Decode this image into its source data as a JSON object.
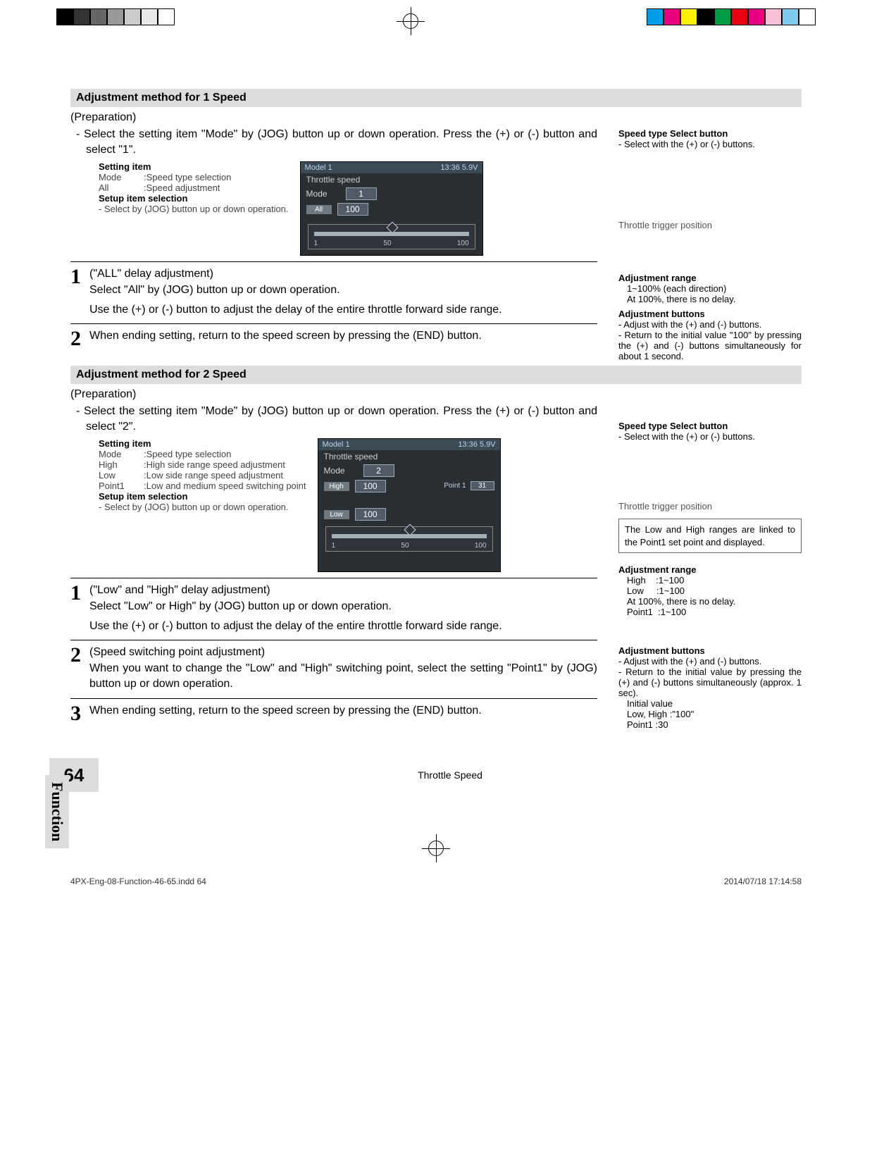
{
  "print_bar": {
    "gray_boxes": [
      "#000000",
      "#333333",
      "#666666",
      "#999999",
      "#cccccc",
      "#e8e8e8",
      "#ffffff"
    ],
    "color_boxes": [
      "#00a0e9",
      "#e6007e",
      "#fff100",
      "#000000",
      "#009944",
      "#e60012",
      "#e4007f",
      "#f6c1d9",
      "#7fccf0",
      "#ffffff"
    ]
  },
  "section1": {
    "bar": "Adjustment method for 1 Speed",
    "prep": "(Preparation)",
    "body": "- Select the setting item \"Mode\" by (JOG) button up or down operation. Press the (+) or (-) button and select \"1\".",
    "setting_title": "Setting item",
    "rows": [
      {
        "k": "Mode",
        "v": ":Speed type selection"
      },
      {
        "k": "All",
        "v": ":Speed adjustment"
      }
    ],
    "setup_title": "Setup item selection",
    "setup_body": "- Select by (JOG) button up or down operation.",
    "lcd": {
      "model": "Model 1",
      "clock": "13:36 5.9V",
      "screen_title": "Throttle speed",
      "mode_label": "Mode",
      "mode_val": "1",
      "all_label": "All",
      "all_val": "100",
      "ticks": [
        "1",
        "50",
        "100"
      ]
    },
    "side": {
      "sel_title": "Speed type Select button",
      "sel_body": "- Select with the (+) or (-) buttons.",
      "trig": "Throttle trigger position",
      "range_title": "Adjustment  range",
      "range_body1": "1~100% (each direction)",
      "range_body2": "At 100%, there is no delay.",
      "btn_title": "Adjustment buttons",
      "btn_body1": "- Adjust with the (+) and (-) buttons.",
      "btn_body2": "- Return to the initial value \"100\" by pressing the (+) and (-) buttons simultaneously for about 1 second."
    },
    "steps": [
      {
        "n": "1",
        "title": "(\"ALL\" delay adjustment)",
        "p1": "Select \"All\" by (JOG) button up or down operation.",
        "p2": "Use the (+) or (-) button to adjust the delay of the entire throttle forward side range."
      },
      {
        "n": "2",
        "p1": "When ending setting, return to the speed screen by pressing the (END) button."
      }
    ]
  },
  "section2": {
    "bar": "Adjustment method for 2 Speed",
    "prep": "(Preparation)",
    "body": "- Select the setting item \"Mode\" by (JOG) button up or down operation. Press the (+) or (-) button and select \"2\".",
    "setting_title": "Setting item",
    "rows": [
      {
        "k": "Mode",
        "v": ":Speed type selection"
      },
      {
        "k": "High",
        "v": ":High side range speed adjustment"
      },
      {
        "k": "Low",
        "v": ":Low side range speed adjustment"
      },
      {
        "k": "Point1",
        "v": ":Low and medium speed switching point"
      }
    ],
    "setup_title": "Setup item selection",
    "setup_body": "- Select by (JOG) button up or down operation.",
    "lcd": {
      "model": "Model 1",
      "clock": "13:36 5.9V",
      "screen_title": "Throttle speed",
      "mode_label": "Mode",
      "mode_val": "2",
      "high_label": "High",
      "high_val": "100",
      "low_label": "Low",
      "low_val": "100",
      "pt_label": "Point 1",
      "pt_val": "31",
      "ticks": [
        "1",
        "50",
        "100"
      ]
    },
    "side": {
      "sel_title": "Speed type Select button",
      "sel_body": "- Select with the (+) or (-) buttons.",
      "trig": "Throttle trigger position",
      "boxnote": "The Low and High ranges are linked to the Point1 set point and displayed.",
      "range_title": "Adjustment  range",
      "range_r1": "High    :1~100",
      "range_r2": "Low     :1~100",
      "range_r3": "At 100%, there is no delay.",
      "range_r4": "Point1  :1~100",
      "btn_title": "Adjustment buttons",
      "btn_body1": "- Adjust with the (+) and (-) buttons.",
      "btn_body2": "- Return to the initial value by pressing the (+) and (-) buttons simultaneously (approx. 1 sec).",
      "btn_body3": "Initial value",
      "btn_body4": "Low, High :\"100\"",
      "btn_body5": "Point1 :30"
    },
    "steps": [
      {
        "n": "1",
        "title": "(\"Low\" and \"High\" delay adjustment)",
        "p1": "Select \"Low\" or High\" by (JOG) button up or down operation.",
        "p2": "Use the (+) or (-) button to adjust the delay of the entire throttle forward side range."
      },
      {
        "n": "2",
        "title": "(Speed switching point adjustment)",
        "p1": "When you want to change the \"Low\" and \"High\" switching point, select the setting \"Point1\" by (JOG) button up or down operation."
      },
      {
        "n": "3",
        "p1": "When ending setting, return to the speed screen by pressing the (END) button."
      }
    ]
  },
  "footer": {
    "page_num": "64",
    "title": "Throttle Speed",
    "vert": "Function",
    "file": "4PX-Eng-08-Function-46-65.indd   64",
    "date": "2014/07/18   17:14:58"
  }
}
